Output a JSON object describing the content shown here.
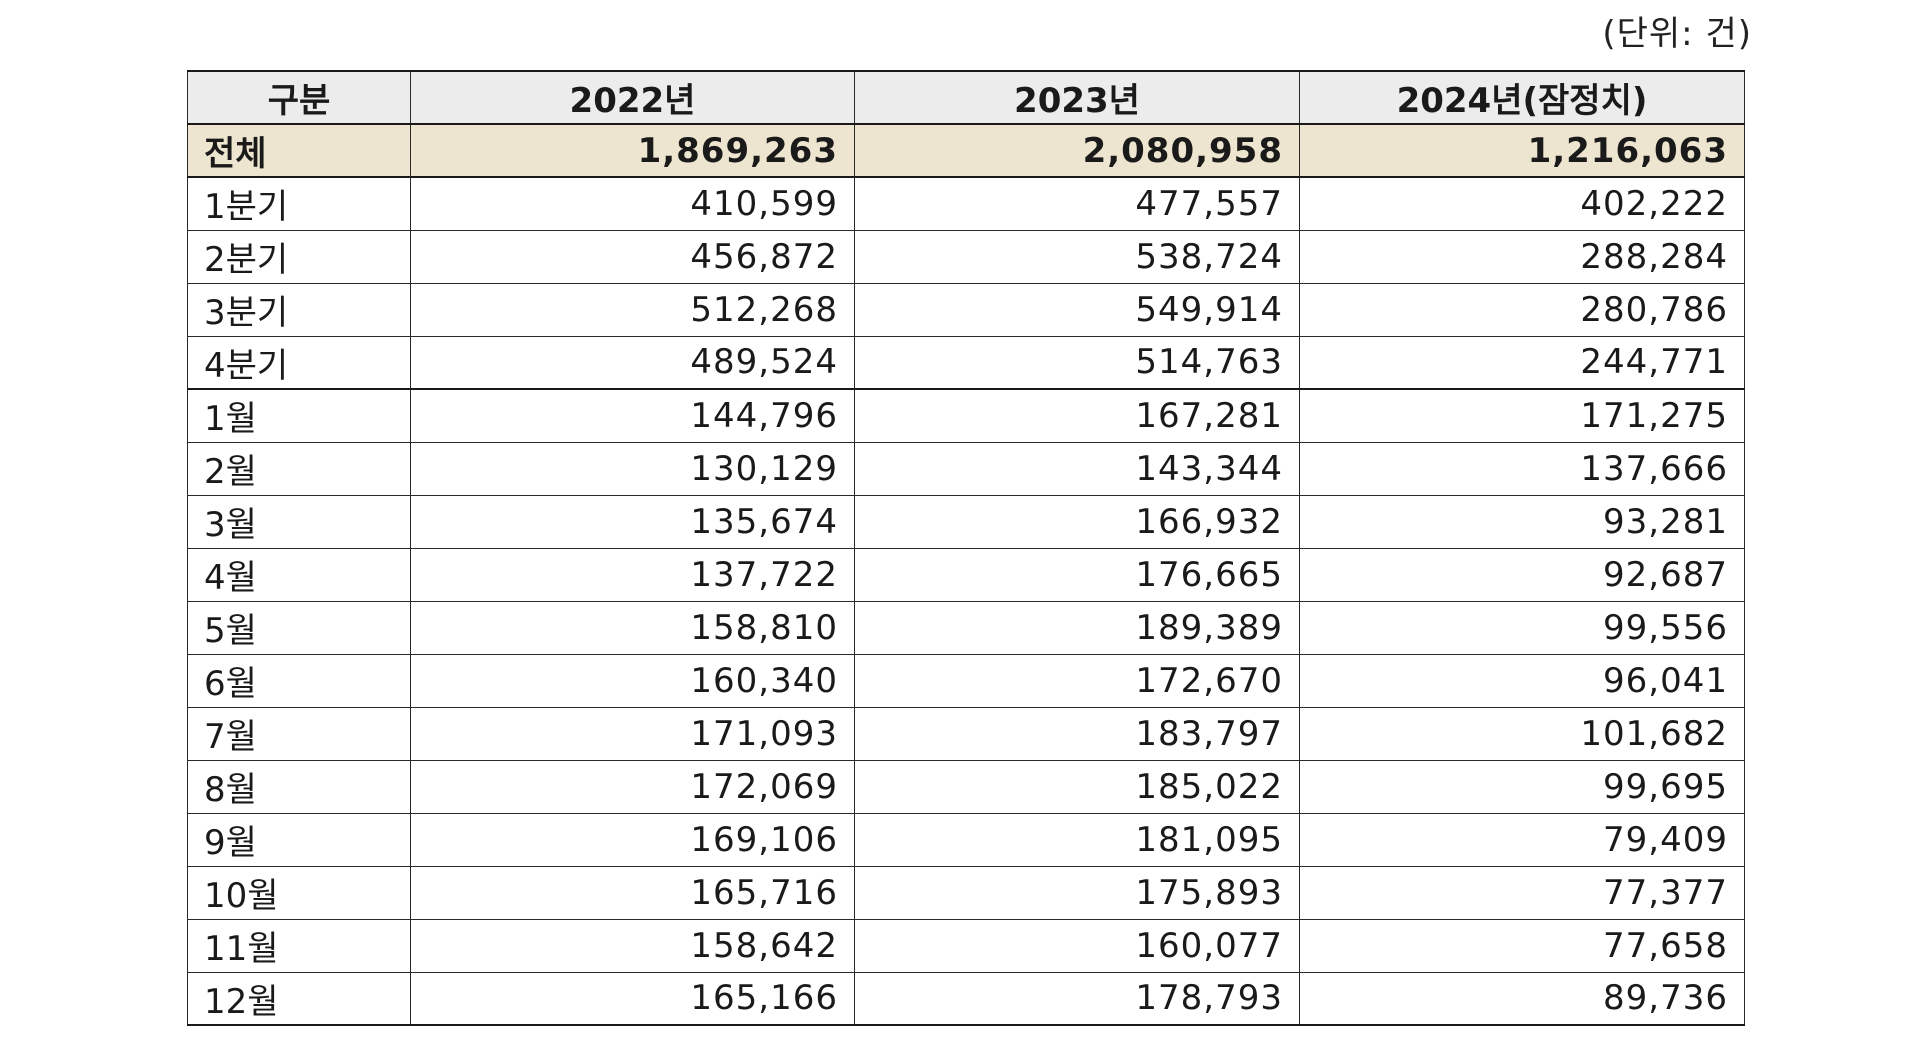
{
  "unit_label": "(단위: 건)",
  "headers": [
    "구분",
    "2022년",
    "2023년",
    "2024년(잠정치)"
  ],
  "total": {
    "label": "전체",
    "values": [
      "1,869,263",
      "2,080,958",
      "1,216,063"
    ]
  },
  "rows": [
    {
      "label": "1분기",
      "values": [
        "410,599",
        "477,557",
        "402,222"
      ]
    },
    {
      "label": "2분기",
      "values": [
        "456,872",
        "538,724",
        "288,284"
      ]
    },
    {
      "label": "3분기",
      "values": [
        "512,268",
        "549,914",
        "280,786"
      ]
    },
    {
      "label": "4분기",
      "values": [
        "489,524",
        "514,763",
        "244,771"
      ]
    },
    {
      "label": "1월",
      "values": [
        "144,796",
        "167,281",
        "171,275"
      ]
    },
    {
      "label": "2월",
      "values": [
        "130,129",
        "143,344",
        "137,666"
      ]
    },
    {
      "label": "3월",
      "values": [
        "135,674",
        "166,932",
        "93,281"
      ]
    },
    {
      "label": "4월",
      "values": [
        "137,722",
        "176,665",
        "92,687"
      ]
    },
    {
      "label": "5월",
      "values": [
        "158,810",
        "189,389",
        "99,556"
      ]
    },
    {
      "label": "6월",
      "values": [
        "160,340",
        "172,670",
        "96,041"
      ]
    },
    {
      "label": "7월",
      "values": [
        "171,093",
        "183,797",
        "101,682"
      ]
    },
    {
      "label": "8월",
      "values": [
        "172,069",
        "185,022",
        "99,695"
      ]
    },
    {
      "label": "9월",
      "values": [
        "169,106",
        "181,095",
        "79,409"
      ]
    },
    {
      "label": "10월",
      "values": [
        "165,716",
        "175,893",
        "77,377"
      ]
    },
    {
      "label": "11월",
      "values": [
        "158,642",
        "160,077",
        "77,658"
      ]
    },
    {
      "label": "12월",
      "values": [
        "165,166",
        "178,793",
        "89,736"
      ]
    }
  ],
  "colors": {
    "header_bg": "#ececec",
    "total_bg": "#ede5cf",
    "border": "#2a2a2a"
  }
}
